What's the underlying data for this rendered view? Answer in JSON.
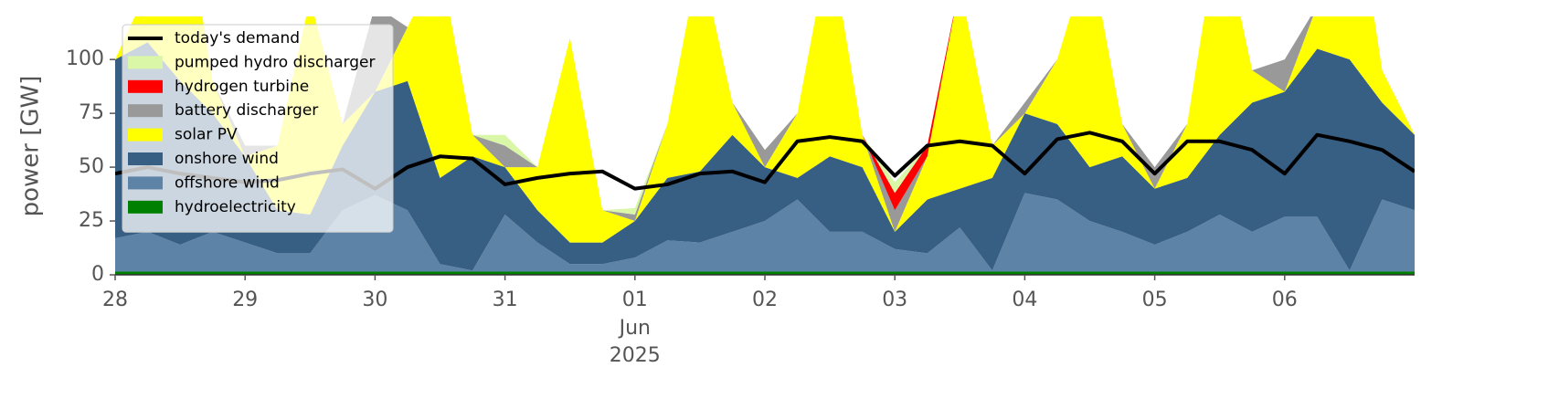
{
  "chart_data": {
    "type": "area",
    "ylabel": "power [GW]",
    "x": [
      "2025-05-28T00:00",
      "2025-05-28T06:00",
      "2025-05-28T12:00",
      "2025-05-28T18:00",
      "2025-05-29T00:00",
      "2025-05-29T06:00",
      "2025-05-29T12:00",
      "2025-05-29T18:00",
      "2025-05-30T00:00",
      "2025-05-30T06:00",
      "2025-05-30T12:00",
      "2025-05-30T18:00",
      "2025-05-31T00:00",
      "2025-05-31T06:00",
      "2025-05-31T12:00",
      "2025-05-31T18:00",
      "2025-06-01T00:00",
      "2025-06-01T06:00",
      "2025-06-01T12:00",
      "2025-06-01T18:00",
      "2025-06-02T00:00",
      "2025-06-02T06:00",
      "2025-06-02T12:00",
      "2025-06-02T18:00",
      "2025-06-03T00:00",
      "2025-06-03T06:00",
      "2025-06-03T12:00",
      "2025-06-03T18:00",
      "2025-06-04T00:00",
      "2025-06-04T06:00",
      "2025-06-04T12:00",
      "2025-06-04T18:00",
      "2025-06-05T00:00",
      "2025-06-05T06:00",
      "2025-06-05T12:00",
      "2025-06-05T18:00",
      "2025-06-06T00:00",
      "2025-06-06T06:00",
      "2025-06-06T12:00",
      "2025-06-06T18:00",
      "2025-06-07T00:00"
    ],
    "xlim": [
      "2025-05-28T00:00",
      "2025-06-07T00:00"
    ],
    "xticks": [
      {
        "value": "2025-05-28T00:00",
        "label": "28"
      },
      {
        "value": "2025-05-29T00:00",
        "label": "29"
      },
      {
        "value": "2025-05-30T00:00",
        "label": "30"
      },
      {
        "value": "2025-05-31T00:00",
        "label": "31"
      },
      {
        "value": "2025-06-01T00:00",
        "label": "01",
        "sublabels": [
          "Jun",
          "2025"
        ]
      },
      {
        "value": "2025-06-02T00:00",
        "label": "02"
      },
      {
        "value": "2025-06-03T00:00",
        "label": "03"
      },
      {
        "value": "2025-06-04T00:00",
        "label": "04"
      },
      {
        "value": "2025-06-05T00:00",
        "label": "05"
      },
      {
        "value": "2025-06-06T00:00",
        "label": "06"
      }
    ],
    "ylim": [
      0,
      120
    ],
    "yticks": [
      0,
      25,
      50,
      75,
      100
    ],
    "legend": "upper left",
    "series": [
      {
        "name": "hydroelectricity",
        "color": "#008000",
        "values": [
          1.5,
          1.5,
          1.5,
          1.5,
          1.5,
          1.5,
          1.5,
          1.5,
          1.5,
          1.5,
          1.5,
          1.5,
          1.5,
          1.5,
          1.5,
          1.5,
          1.5,
          1.5,
          1.5,
          1.5,
          1.5,
          1.5,
          1.5,
          1.5,
          1.5,
          1.5,
          1.5,
          1.5,
          1.5,
          1.5,
          1.5,
          1.5,
          1.5,
          1.5,
          1.5,
          1.5,
          1.5,
          1.5,
          1.5,
          1.5,
          1.5
        ]
      },
      {
        "name": "offshore wind",
        "color": "#5d83a6",
        "values": [
          15.5,
          18.5,
          12.5,
          18.5,
          13.5,
          8.5,
          8.5,
          28.5,
          35.5,
          28.5,
          3.5,
          0.5,
          26.5,
          13.5,
          3.5,
          3.5,
          6.5,
          14.5,
          13.5,
          18.5,
          23.5,
          33.5,
          18.5,
          18.5,
          10.5,
          8.5,
          20.5,
          0.5,
          36.5,
          33.5,
          23.5,
          18.5,
          12.5,
          18.5,
          26.5,
          18.5,
          25.5,
          25.5,
          0.5,
          33.5,
          28.5
        ]
      },
      {
        "name": "onshore wind",
        "color": "#375e83",
        "values": [
          83,
          88,
          76,
          55,
          40,
          20,
          18,
          30,
          48,
          60,
          40,
          53,
          22,
          15,
          10,
          10,
          17,
          29,
          33,
          45,
          25,
          10,
          35,
          30,
          8,
          25,
          18,
          43,
          37,
          35,
          25,
          35,
          26,
          25,
          37,
          60,
          58,
          78,
          98,
          45,
          35
        ]
      },
      {
        "name": "solar PV",
        "color": "#ffff00",
        "values": [
          0,
          25,
          95,
          15,
          0,
          30,
          100,
          10,
          0,
          25,
          100,
          10,
          0,
          20,
          95,
          15,
          0,
          25,
          100,
          15,
          0,
          30,
          100,
          15,
          0,
          20,
          95,
          15,
          0,
          30,
          100,
          15,
          0,
          25,
          100,
          15,
          0,
          20,
          95,
          15,
          0
        ]
      },
      {
        "name": "battery discharger",
        "color": "#999999",
        "values": [
          0,
          0,
          0,
          0,
          5,
          0,
          0,
          0,
          40,
          0,
          0,
          0,
          10,
          0,
          0,
          0,
          3,
          0,
          0,
          0,
          8,
          0,
          0,
          0,
          10,
          0,
          0,
          0,
          5,
          0,
          0,
          0,
          10,
          0,
          0,
          0,
          15,
          0,
          0,
          0,
          0
        ]
      },
      {
        "name": "hydrogen turbine",
        "color": "#ff0000",
        "values": [
          0,
          0,
          0,
          0,
          0,
          0,
          0,
          0,
          0,
          0,
          0,
          0,
          0,
          0,
          0,
          0,
          0,
          0,
          0,
          0,
          0,
          0,
          0,
          0,
          8,
          5,
          0,
          0,
          0,
          0,
          0,
          0,
          0,
          0,
          0,
          0,
          0,
          0,
          0,
          0,
          0
        ]
      },
      {
        "name": "pumped hydro discharger",
        "color": "#d9f7a7",
        "values": [
          0,
          0,
          0,
          0,
          0,
          0,
          0,
          0,
          0,
          0,
          0,
          0,
          5,
          0,
          0,
          0,
          3,
          0,
          0,
          0,
          0,
          0,
          0,
          0,
          5,
          0,
          0,
          0,
          0,
          0,
          0,
          0,
          0,
          0,
          0,
          0,
          0,
          0,
          0,
          0,
          0
        ]
      },
      {
        "name": "today's demand",
        "color": "#000000",
        "style": "line",
        "values": [
          47,
          50,
          47,
          45,
          43,
          44,
          47,
          49,
          40,
          50,
          55,
          54,
          42,
          45,
          47,
          48,
          40,
          42,
          47,
          48,
          43,
          62,
          64,
          62,
          46,
          60,
          62,
          60,
          47,
          63,
          66,
          62,
          47,
          62,
          62,
          58,
          47,
          65,
          62,
          58,
          48
        ]
      }
    ]
  }
}
